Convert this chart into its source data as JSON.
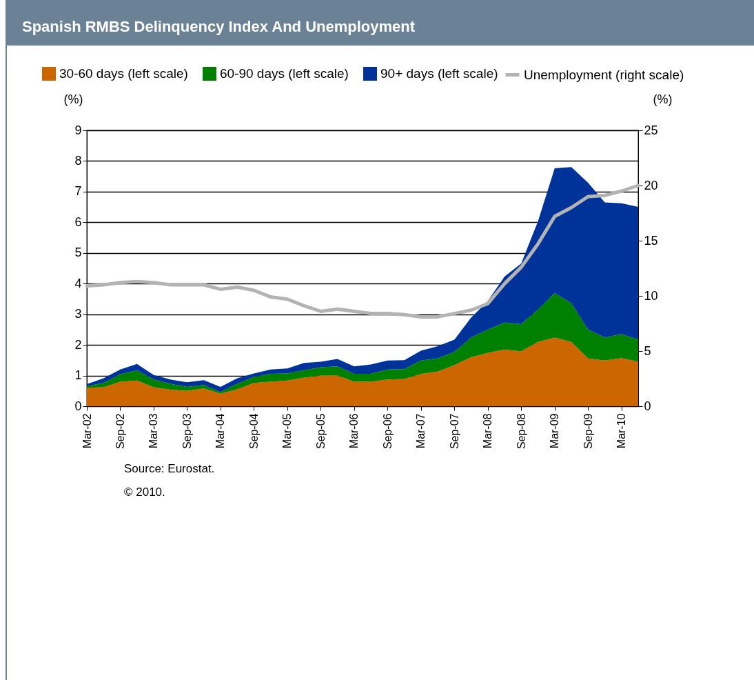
{
  "chart_data": {
    "type": "area",
    "title": "Spanish RMBS Delinquency Index And Unemployment",
    "stacked": true,
    "categories": [
      "Mar-02",
      null,
      "Sep-02",
      null,
      "Mar-03",
      null,
      "Sep-03",
      null,
      "Mar-04",
      null,
      "Sep-04",
      null,
      "Mar-05",
      null,
      "Sep-05",
      null,
      "Mar-06",
      null,
      "Sep-06",
      null,
      "Mar-07",
      null,
      "Sep-07",
      null,
      "Mar-08",
      null,
      "Sep-08",
      null,
      "Mar-09",
      null,
      "Sep-09",
      null,
      "Mar-10",
      null
    ],
    "series": [
      {
        "name": "30-60 days (left scale)",
        "color": "#cc6600",
        "values": [
          0.6,
          0.62,
          0.8,
          0.84,
          0.62,
          0.54,
          0.5,
          0.58,
          0.41,
          0.55,
          0.76,
          0.8,
          0.84,
          0.93,
          1.0,
          1.0,
          0.8,
          0.8,
          0.87,
          0.89,
          1.05,
          1.13,
          1.34,
          1.6,
          1.74,
          1.85,
          1.79,
          2.1,
          2.24,
          2.1,
          1.56,
          1.49,
          1.57,
          1.45
        ]
      },
      {
        "name": "60-90 days (left scale)",
        "color": "#008000",
        "values": [
          0.05,
          0.14,
          0.24,
          0.33,
          0.25,
          0.19,
          0.13,
          0.11,
          0.05,
          0.18,
          0.19,
          0.26,
          0.23,
          0.24,
          0.27,
          0.3,
          0.26,
          0.26,
          0.33,
          0.32,
          0.44,
          0.43,
          0.43,
          0.64,
          0.76,
          0.88,
          0.89,
          1.05,
          1.45,
          1.26,
          0.94,
          0.75,
          0.78,
          0.72
        ]
      },
      {
        "name": "90+ days (left scale)",
        "color": "#003399",
        "values": [
          0.07,
          0.15,
          0.16,
          0.21,
          0.15,
          0.14,
          0.15,
          0.16,
          0.17,
          0.18,
          0.12,
          0.14,
          0.16,
          0.24,
          0.18,
          0.24,
          0.24,
          0.3,
          0.29,
          0.29,
          0.32,
          0.4,
          0.4,
          0.65,
          0.93,
          1.5,
          1.98,
          2.88,
          4.07,
          4.44,
          4.79,
          4.41,
          4.27,
          4.33
        ]
      },
      {
        "name": "Unemployment (right scale)",
        "type": "line",
        "axis": "y2",
        "color": "#b3b3b3",
        "values": [
          10.9,
          11.0,
          11.2,
          11.3,
          11.2,
          11.0,
          11.0,
          11.0,
          10.6,
          10.8,
          10.5,
          9.9,
          9.7,
          9.1,
          8.6,
          8.8,
          8.6,
          8.4,
          8.4,
          8.3,
          8.1,
          8.1,
          8.4,
          8.7,
          9.3,
          11.1,
          12.6,
          14.7,
          17.2,
          18.0,
          19.0,
          19.1,
          19.5,
          20.0
        ]
      }
    ],
    "ylabel": "(%)",
    "y2label": "(%)",
    "ylim": [
      0,
      9
    ],
    "yticks": [
      0,
      1,
      2,
      3,
      4,
      5,
      6,
      7,
      8,
      9
    ],
    "y2lim": [
      0,
      25
    ],
    "y2ticks": [
      0,
      5,
      10,
      15,
      20,
      25
    ],
    "grid": "y",
    "legend": "top",
    "annotations": [
      "Source: Eurostat.",
      "© 2010."
    ]
  }
}
